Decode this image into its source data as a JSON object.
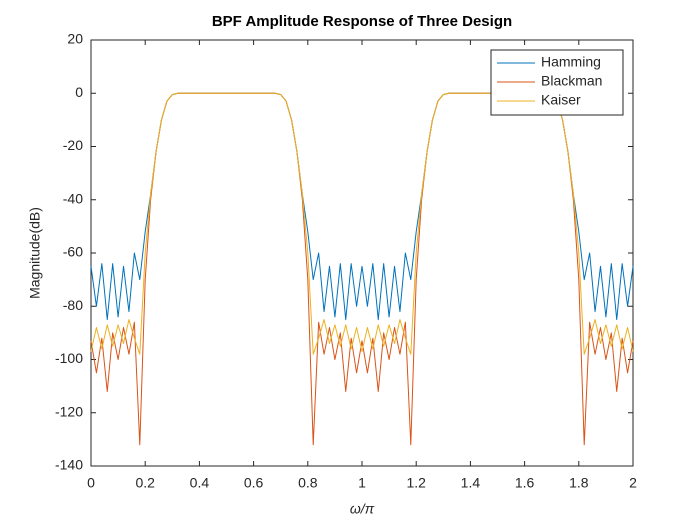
{
  "chart_data": {
    "type": "line",
    "title": "BPF Amplitude Response of Three Design",
    "xlabel": "ω/π",
    "ylabel": "Magnitude(dB)",
    "x": [
      0,
      0.02,
      0.04,
      0.06,
      0.08,
      0.1,
      0.12,
      0.14,
      0.16,
      0.18,
      0.2,
      0.22,
      0.24,
      0.26,
      0.28,
      0.3,
      0.32,
      0.34,
      0.36,
      0.38,
      0.4,
      0.42,
      0.44,
      0.46,
      0.48,
      0.5,
      0.52,
      0.54,
      0.56,
      0.58,
      0.6,
      0.62,
      0.64,
      0.66,
      0.68,
      0.7,
      0.72,
      0.74,
      0.76,
      0.78,
      0.8,
      0.82,
      0.84,
      0.86,
      0.88,
      0.9,
      0.92,
      0.94,
      0.96,
      0.98,
      1,
      1.02,
      1.04,
      1.06,
      1.08,
      1.1,
      1.12,
      1.14,
      1.16,
      1.18,
      1.2,
      1.22,
      1.24,
      1.26,
      1.28,
      1.3,
      1.32,
      1.34,
      1.36,
      1.38,
      1.4,
      1.42,
      1.44,
      1.46,
      1.48,
      1.5,
      1.52,
      1.54,
      1.56,
      1.58,
      1.6,
      1.62,
      1.64,
      1.66,
      1.68,
      1.7,
      1.72,
      1.74,
      1.76,
      1.78,
      1.8,
      1.82,
      1.84,
      1.86,
      1.88,
      1.9,
      1.92,
      1.94,
      1.96,
      1.98,
      2
    ],
    "series": [
      {
        "name": "Hamming",
        "color": "#0072BD",
        "values": [
          -65,
          -80,
          -64,
          -85,
          -64,
          -84,
          -65,
          -82,
          -60,
          -70,
          -52,
          -38,
          -22,
          -10,
          -3,
          -0.5,
          0,
          0,
          0,
          0,
          0,
          0,
          0,
          0,
          0,
          0,
          0,
          0,
          0,
          0,
          0,
          0,
          0,
          0,
          0,
          -0.5,
          -3,
          -10,
          -22,
          -38,
          -52,
          -70,
          -60,
          -82,
          -65,
          -84,
          -64,
          -85,
          -64,
          -80,
          -65,
          -80,
          -64,
          -85,
          -64,
          -84,
          -65,
          -82,
          -60,
          -70,
          -52,
          -38,
          -22,
          -10,
          -3,
          -0.5,
          0,
          0,
          0,
          0,
          0,
          0,
          0,
          0,
          0,
          0,
          0,
          0,
          0,
          0,
          0,
          0,
          0,
          0,
          0,
          -0.5,
          -3,
          -10,
          -22,
          -38,
          -52,
          -70,
          -60,
          -82,
          -65,
          -84,
          -64,
          -85,
          -64,
          -80,
          -65
        ]
      },
      {
        "name": "Blackman",
        "color": "#D95319",
        "values": [
          -93,
          -105,
          -92,
          -112,
          -90,
          -100,
          -88,
          -98,
          -86,
          -132,
          -70,
          -40,
          -22,
          -10,
          -3,
          -0.5,
          0,
          0,
          0,
          0,
          0,
          0,
          0,
          0,
          0,
          0,
          0,
          0,
          0,
          0,
          0,
          0,
          0,
          0,
          0,
          -0.5,
          -3,
          -10,
          -22,
          -40,
          -70,
          -132,
          -86,
          -98,
          -88,
          -100,
          -90,
          -112,
          -92,
          -105,
          -93,
          -105,
          -92,
          -112,
          -90,
          -100,
          -88,
          -98,
          -86,
          -132,
          -70,
          -40,
          -22,
          -10,
          -3,
          -0.5,
          0,
          0,
          0,
          0,
          0,
          0,
          0,
          0,
          0,
          0,
          0,
          0,
          0,
          0,
          0,
          0,
          0,
          0,
          0,
          -0.5,
          -3,
          -10,
          -22,
          -40,
          -70,
          -132,
          -86,
          -98,
          -88,
          -100,
          -90,
          -112,
          -92,
          -105,
          -93
        ]
      },
      {
        "name": "Kaiser",
        "color": "#EDB120",
        "values": [
          -97,
          -88,
          -96,
          -87,
          -95,
          -87,
          -94,
          -85,
          -92,
          -98,
          -60,
          -38,
          -22,
          -10,
          -3,
          -0.5,
          0,
          0,
          0,
          0,
          0,
          0,
          0,
          0,
          0,
          0,
          0,
          0,
          0,
          0,
          0,
          0,
          0,
          0,
          0,
          -0.5,
          -3,
          -10,
          -22,
          -38,
          -60,
          -98,
          -92,
          -85,
          -94,
          -87,
          -95,
          -87,
          -96,
          -88,
          -97,
          -88,
          -96,
          -87,
          -95,
          -87,
          -94,
          -85,
          -92,
          -98,
          -60,
          -38,
          -22,
          -10,
          -3,
          -0.5,
          0,
          0,
          0,
          0,
          0,
          0,
          0,
          0,
          0,
          0,
          0,
          0,
          0,
          0,
          0,
          0,
          0,
          0,
          0,
          -0.5,
          -3,
          -10,
          -22,
          -38,
          -60,
          -98,
          -92,
          -85,
          -94,
          -87,
          -95,
          -87,
          -96,
          -88,
          -97
        ]
      }
    ],
    "xlim": [
      0,
      2
    ],
    "xticks": [
      0,
      0.2,
      0.4,
      0.6,
      0.8,
      1,
      1.2,
      1.4,
      1.6,
      1.8,
      2
    ],
    "ylim": [
      -140,
      20
    ],
    "yticks": [
      -140,
      -120,
      -100,
      -80,
      -60,
      -40,
      -20,
      0,
      20
    ],
    "grid": false,
    "legend": "top-right"
  }
}
